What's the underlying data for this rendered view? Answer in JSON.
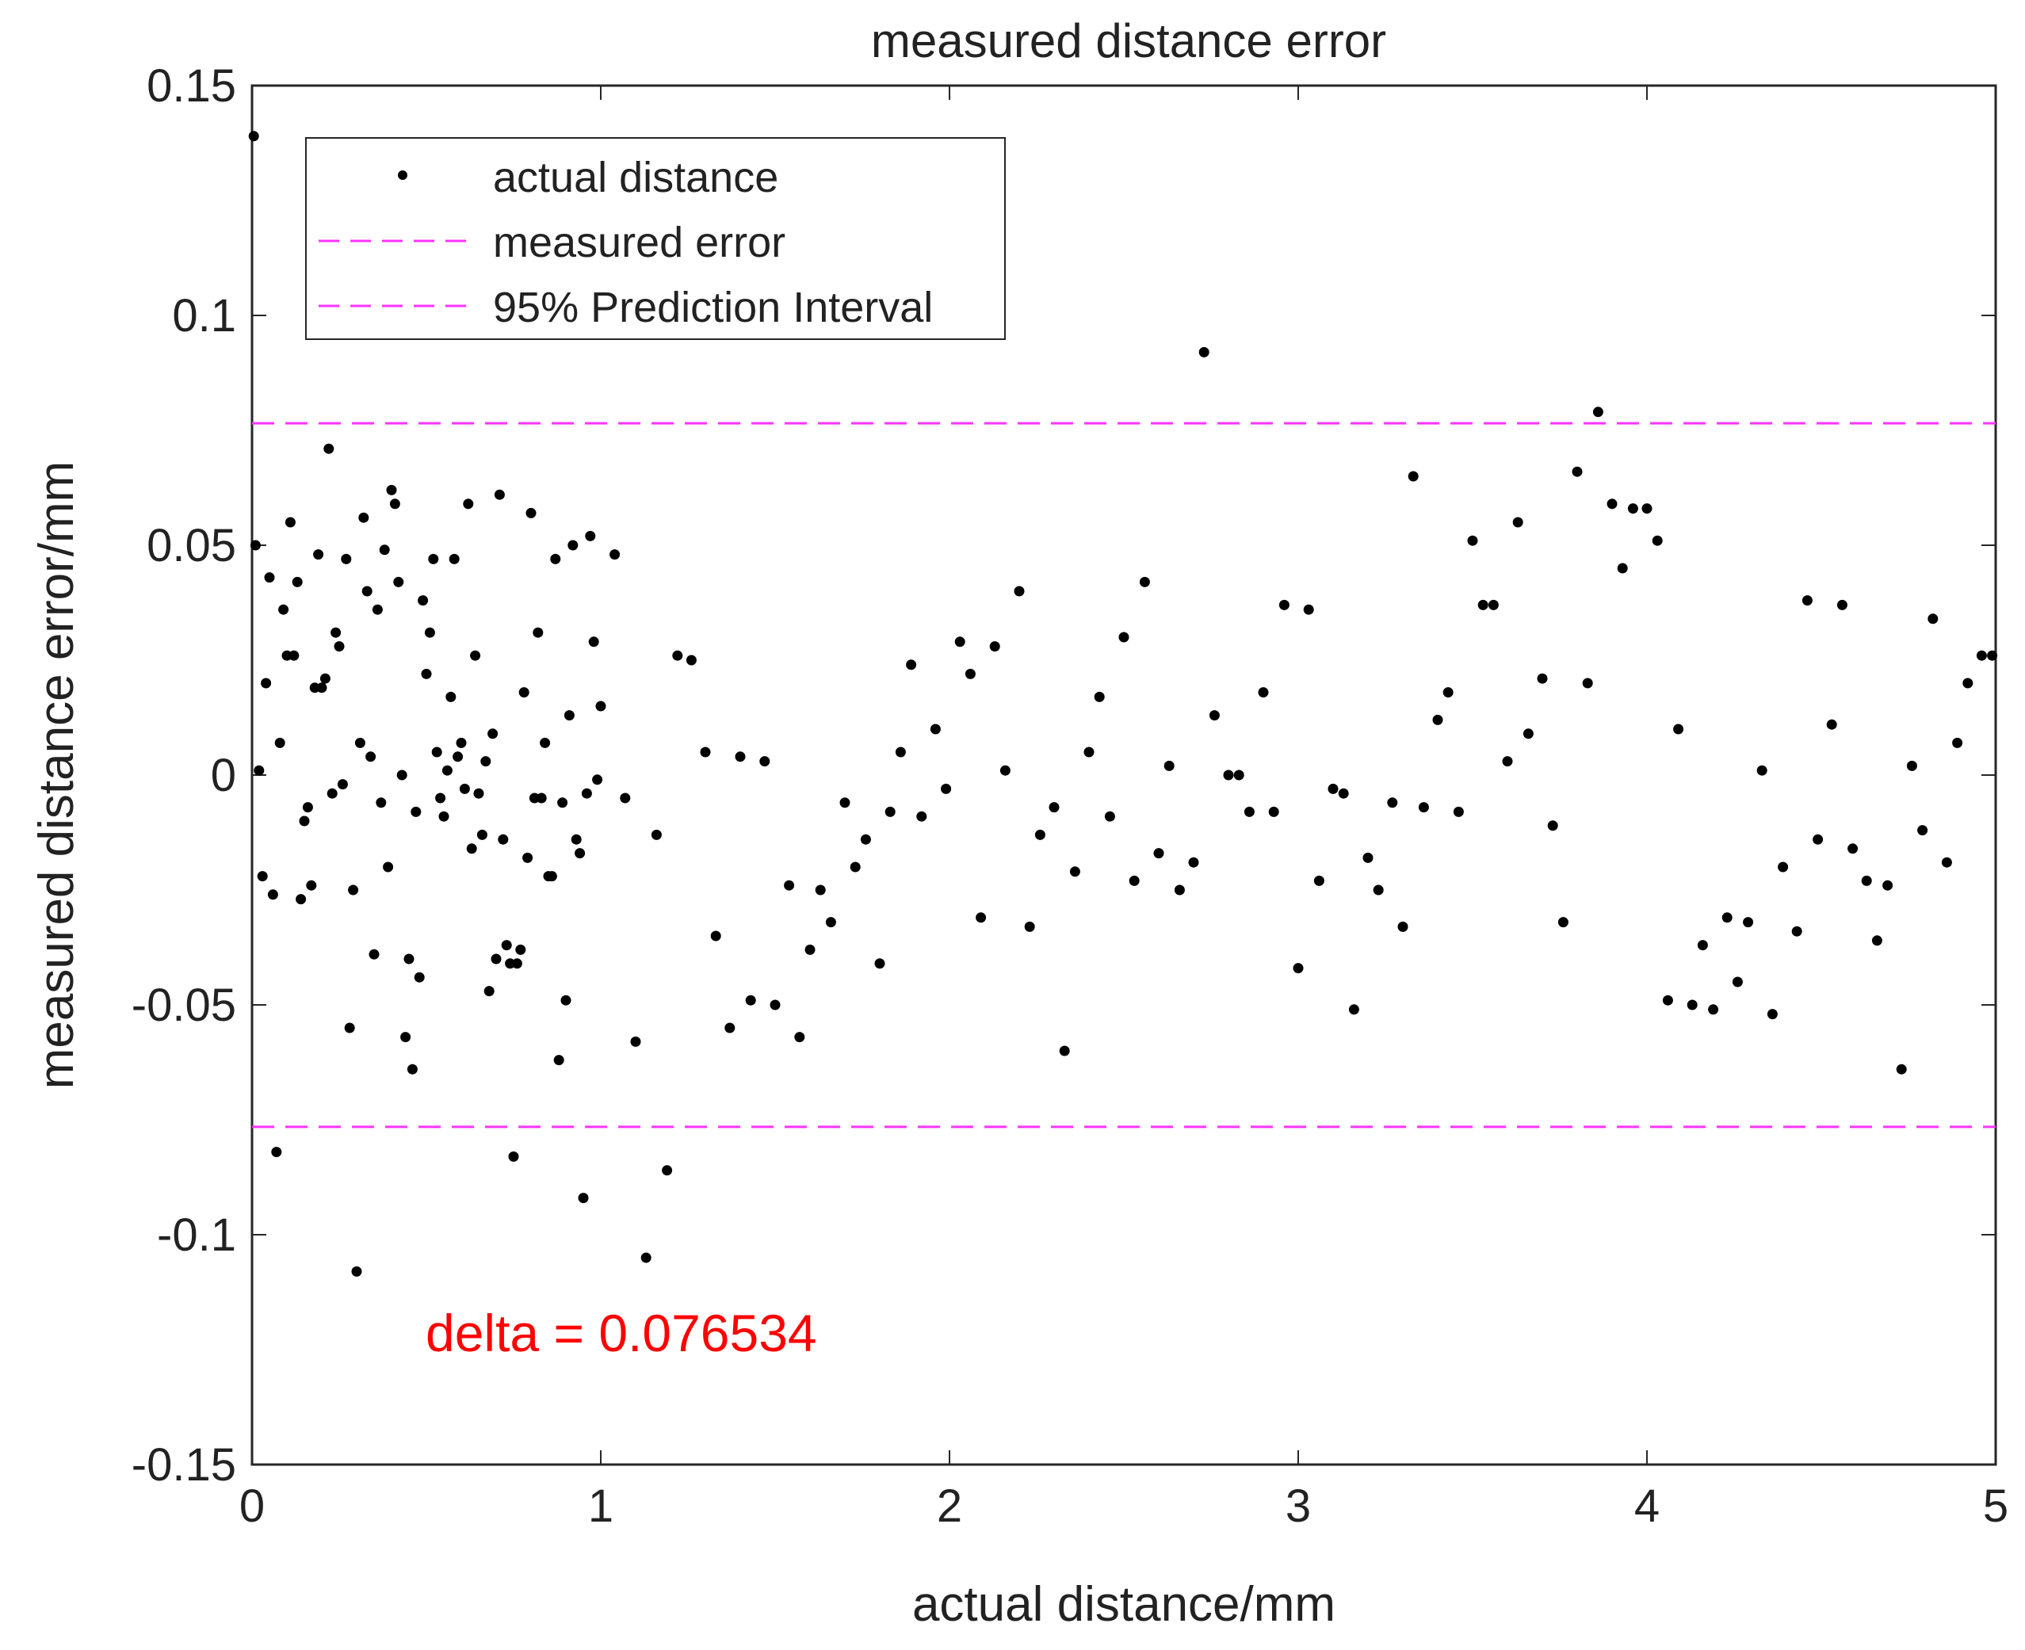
{
  "chart_data": {
    "type": "scatter",
    "title": "measured distance error",
    "xlabel": "actual distance/mm",
    "ylabel": "measured distance error/mm",
    "xlim": [
      0,
      5
    ],
    "ylim": [
      -0.15,
      0.15
    ],
    "xticks": [
      0,
      1,
      2,
      3,
      4,
      5
    ],
    "yticks": [
      -0.15,
      -0.1,
      -0.05,
      0,
      0.05,
      0.1,
      0.15
    ],
    "xtick_labels": [
      "0",
      "1",
      "2",
      "3",
      "4",
      "5"
    ],
    "ytick_labels": [
      "-0.15",
      "-0.1",
      "-0.05",
      "0",
      "0.05",
      "0.1",
      "0.15"
    ],
    "grid": false,
    "legend_position": "top-left",
    "annotation": {
      "text": "delta = 0.076534",
      "color": "#ff0000"
    },
    "series": [
      {
        "name": "actual distance",
        "kind": "points",
        "color": "#000000",
        "points": [
          [
            0.005,
            0.139
          ],
          [
            0.01,
            0.05
          ],
          [
            0.02,
            0.001
          ],
          [
            0.03,
            -0.022
          ],
          [
            0.04,
            0.02
          ],
          [
            0.05,
            0.043
          ],
          [
            0.06,
            -0.026
          ],
          [
            0.07,
            -0.082
          ],
          [
            0.08,
            0.007
          ],
          [
            0.09,
            0.036
          ],
          [
            0.1,
            0.026
          ],
          [
            0.11,
            0.055
          ],
          [
            0.12,
            0.026
          ],
          [
            0.13,
            0.042
          ],
          [
            0.14,
            -0.027
          ],
          [
            0.15,
            -0.01
          ],
          [
            0.16,
            -0.007
          ],
          [
            0.17,
            -0.024
          ],
          [
            0.18,
            0.019
          ],
          [
            0.19,
            0.048
          ],
          [
            0.2,
            0.019
          ],
          [
            0.21,
            0.021
          ],
          [
            0.22,
            0.071
          ],
          [
            0.23,
            -0.004
          ],
          [
            0.24,
            0.031
          ],
          [
            0.25,
            0.028
          ],
          [
            0.26,
            -0.002
          ],
          [
            0.27,
            0.047
          ],
          [
            0.28,
            -0.055
          ],
          [
            0.29,
            -0.025
          ],
          [
            0.3,
            -0.108
          ],
          [
            0.31,
            0.007
          ],
          [
            0.32,
            0.056
          ],
          [
            0.33,
            0.04
          ],
          [
            0.34,
            0.004
          ],
          [
            0.35,
            -0.039
          ],
          [
            0.36,
            0.036
          ],
          [
            0.37,
            -0.006
          ],
          [
            0.38,
            0.049
          ],
          [
            0.39,
            -0.02
          ],
          [
            0.4,
            0.062
          ],
          [
            0.41,
            0.059
          ],
          [
            0.42,
            0.042
          ],
          [
            0.43,
            0.0
          ],
          [
            0.44,
            -0.057
          ],
          [
            0.45,
            -0.04
          ],
          [
            0.46,
            -0.064
          ],
          [
            0.47,
            -0.008
          ],
          [
            0.48,
            -0.044
          ],
          [
            0.49,
            0.038
          ],
          [
            0.5,
            0.022
          ],
          [
            0.51,
            0.031
          ],
          [
            0.52,
            0.047
          ],
          [
            0.53,
            0.005
          ],
          [
            0.54,
            -0.005
          ],
          [
            0.55,
            -0.009
          ],
          [
            0.56,
            0.001
          ],
          [
            0.57,
            0.017
          ],
          [
            0.58,
            0.047
          ],
          [
            0.59,
            0.004
          ],
          [
            0.6,
            0.007
          ],
          [
            0.61,
            -0.003
          ],
          [
            0.62,
            0.059
          ],
          [
            0.63,
            -0.016
          ],
          [
            0.64,
            0.026
          ],
          [
            0.65,
            -0.004
          ],
          [
            0.66,
            -0.013
          ],
          [
            0.67,
            0.003
          ],
          [
            0.68,
            -0.047
          ],
          [
            0.69,
            0.009
          ],
          [
            0.7,
            -0.04
          ],
          [
            0.71,
            0.061
          ],
          [
            0.72,
            -0.014
          ],
          [
            0.73,
            -0.037
          ],
          [
            0.74,
            -0.041
          ],
          [
            0.75,
            -0.083
          ],
          [
            0.76,
            -0.041
          ],
          [
            0.77,
            -0.038
          ],
          [
            0.78,
            0.018
          ],
          [
            0.79,
            -0.018
          ],
          [
            0.8,
            0.057
          ],
          [
            0.81,
            -0.005
          ],
          [
            0.82,
            0.031
          ],
          [
            0.83,
            -0.005
          ],
          [
            0.84,
            0.007
          ],
          [
            0.85,
            -0.022
          ],
          [
            0.86,
            -0.022
          ],
          [
            0.87,
            0.047
          ],
          [
            0.88,
            -0.062
          ],
          [
            0.89,
            -0.006
          ],
          [
            0.9,
            -0.049
          ],
          [
            0.91,
            0.013
          ],
          [
            0.92,
            0.05
          ],
          [
            0.93,
            -0.014
          ],
          [
            0.94,
            -0.017
          ],
          [
            0.95,
            -0.092
          ],
          [
            0.96,
            -0.004
          ],
          [
            0.97,
            0.052
          ],
          [
            0.98,
            0.029
          ],
          [
            0.99,
            -0.001
          ],
          [
            1.0,
            0.015
          ],
          [
            1.04,
            0.048
          ],
          [
            1.07,
            -0.005
          ],
          [
            1.1,
            -0.058
          ],
          [
            1.13,
            -0.105
          ],
          [
            1.16,
            -0.013
          ],
          [
            1.19,
            -0.086
          ],
          [
            1.22,
            0.026
          ],
          [
            1.26,
            0.025
          ],
          [
            1.3,
            0.005
          ],
          [
            1.33,
            -0.035
          ],
          [
            1.37,
            -0.055
          ],
          [
            1.4,
            0.004
          ],
          [
            1.43,
            -0.049
          ],
          [
            1.47,
            0.003
          ],
          [
            1.5,
            -0.05
          ],
          [
            1.54,
            -0.024
          ],
          [
            1.57,
            -0.057
          ],
          [
            1.6,
            -0.038
          ],
          [
            1.63,
            -0.025
          ],
          [
            1.66,
            -0.032
          ],
          [
            1.7,
            -0.006
          ],
          [
            1.73,
            -0.02
          ],
          [
            1.76,
            -0.014
          ],
          [
            1.8,
            -0.041
          ],
          [
            1.83,
            -0.008
          ],
          [
            1.86,
            0.005
          ],
          [
            1.89,
            0.024
          ],
          [
            1.92,
            -0.009
          ],
          [
            1.96,
            0.01
          ],
          [
            1.99,
            -0.003
          ],
          [
            2.03,
            0.029
          ],
          [
            2.06,
            0.022
          ],
          [
            2.09,
            -0.031
          ],
          [
            2.13,
            0.028
          ],
          [
            2.16,
            0.001
          ],
          [
            2.2,
            0.04
          ],
          [
            2.23,
            -0.033
          ],
          [
            2.26,
            -0.013
          ],
          [
            2.3,
            -0.007
          ],
          [
            2.33,
            -0.06
          ],
          [
            2.36,
            -0.021
          ],
          [
            2.4,
            0.005
          ],
          [
            2.43,
            0.017
          ],
          [
            2.46,
            -0.009
          ],
          [
            2.5,
            0.03
          ],
          [
            2.53,
            -0.023
          ],
          [
            2.56,
            0.042
          ],
          [
            2.6,
            -0.017
          ],
          [
            2.63,
            0.002
          ],
          [
            2.66,
            -0.025
          ],
          [
            2.7,
            -0.019
          ],
          [
            2.73,
            0.092
          ],
          [
            2.76,
            0.013
          ],
          [
            2.8,
            0.0
          ],
          [
            2.83,
            0.0
          ],
          [
            2.86,
            -0.008
          ],
          [
            2.9,
            0.018
          ],
          [
            2.93,
            -0.008
          ],
          [
            2.96,
            0.037
          ],
          [
            3.0,
            -0.042
          ],
          [
            3.03,
            0.036
          ],
          [
            3.06,
            -0.023
          ],
          [
            3.1,
            -0.003
          ],
          [
            3.13,
            -0.004
          ],
          [
            3.16,
            -0.051
          ],
          [
            3.2,
            -0.018
          ],
          [
            3.23,
            -0.025
          ],
          [
            3.27,
            -0.006
          ],
          [
            3.3,
            -0.033
          ],
          [
            3.33,
            0.065
          ],
          [
            3.36,
            -0.007
          ],
          [
            3.4,
            0.012
          ],
          [
            3.43,
            0.018
          ],
          [
            3.46,
            -0.008
          ],
          [
            3.5,
            0.051
          ],
          [
            3.53,
            0.037
          ],
          [
            3.56,
            0.037
          ],
          [
            3.6,
            0.003
          ],
          [
            3.63,
            0.055
          ],
          [
            3.66,
            0.009
          ],
          [
            3.7,
            0.021
          ],
          [
            3.73,
            -0.011
          ],
          [
            3.76,
            -0.032
          ],
          [
            3.8,
            0.066
          ],
          [
            3.83,
            0.02
          ],
          [
            3.86,
            0.079
          ],
          [
            3.9,
            0.059
          ],
          [
            3.93,
            0.045
          ],
          [
            3.96,
            0.058
          ],
          [
            4.0,
            0.058
          ],
          [
            4.03,
            0.051
          ],
          [
            4.06,
            -0.049
          ],
          [
            4.09,
            0.01
          ],
          [
            4.13,
            -0.05
          ],
          [
            4.16,
            -0.037
          ],
          [
            4.19,
            -0.051
          ],
          [
            4.23,
            -0.031
          ],
          [
            4.26,
            -0.045
          ],
          [
            4.29,
            -0.032
          ],
          [
            4.33,
            0.001
          ],
          [
            4.36,
            -0.052
          ],
          [
            4.39,
            -0.02
          ],
          [
            4.43,
            -0.034
          ],
          [
            4.46,
            0.038
          ],
          [
            4.49,
            -0.014
          ],
          [
            4.53,
            0.011
          ],
          [
            4.56,
            0.037
          ],
          [
            4.59,
            -0.016
          ],
          [
            4.63,
            -0.023
          ],
          [
            4.66,
            -0.036
          ],
          [
            4.69,
            -0.024
          ],
          [
            4.73,
            -0.064
          ],
          [
            4.76,
            0.002
          ],
          [
            4.79,
            -0.012
          ],
          [
            4.82,
            0.034
          ],
          [
            4.86,
            -0.019
          ],
          [
            4.89,
            0.007
          ],
          [
            4.92,
            0.02
          ],
          [
            4.96,
            0.026
          ],
          [
            4.99,
            0.026
          ]
        ]
      },
      {
        "name": "measured error",
        "kind": "line",
        "color": "#ff33ff",
        "x": [
          0,
          5
        ],
        "y": [
          0.076534,
          0.076534
        ]
      },
      {
        "name": "95% Prediction Interval",
        "kind": "line",
        "color": "#ff33ff",
        "x": [
          0,
          5
        ],
        "y": [
          -0.076534,
          -0.076534
        ]
      }
    ]
  }
}
